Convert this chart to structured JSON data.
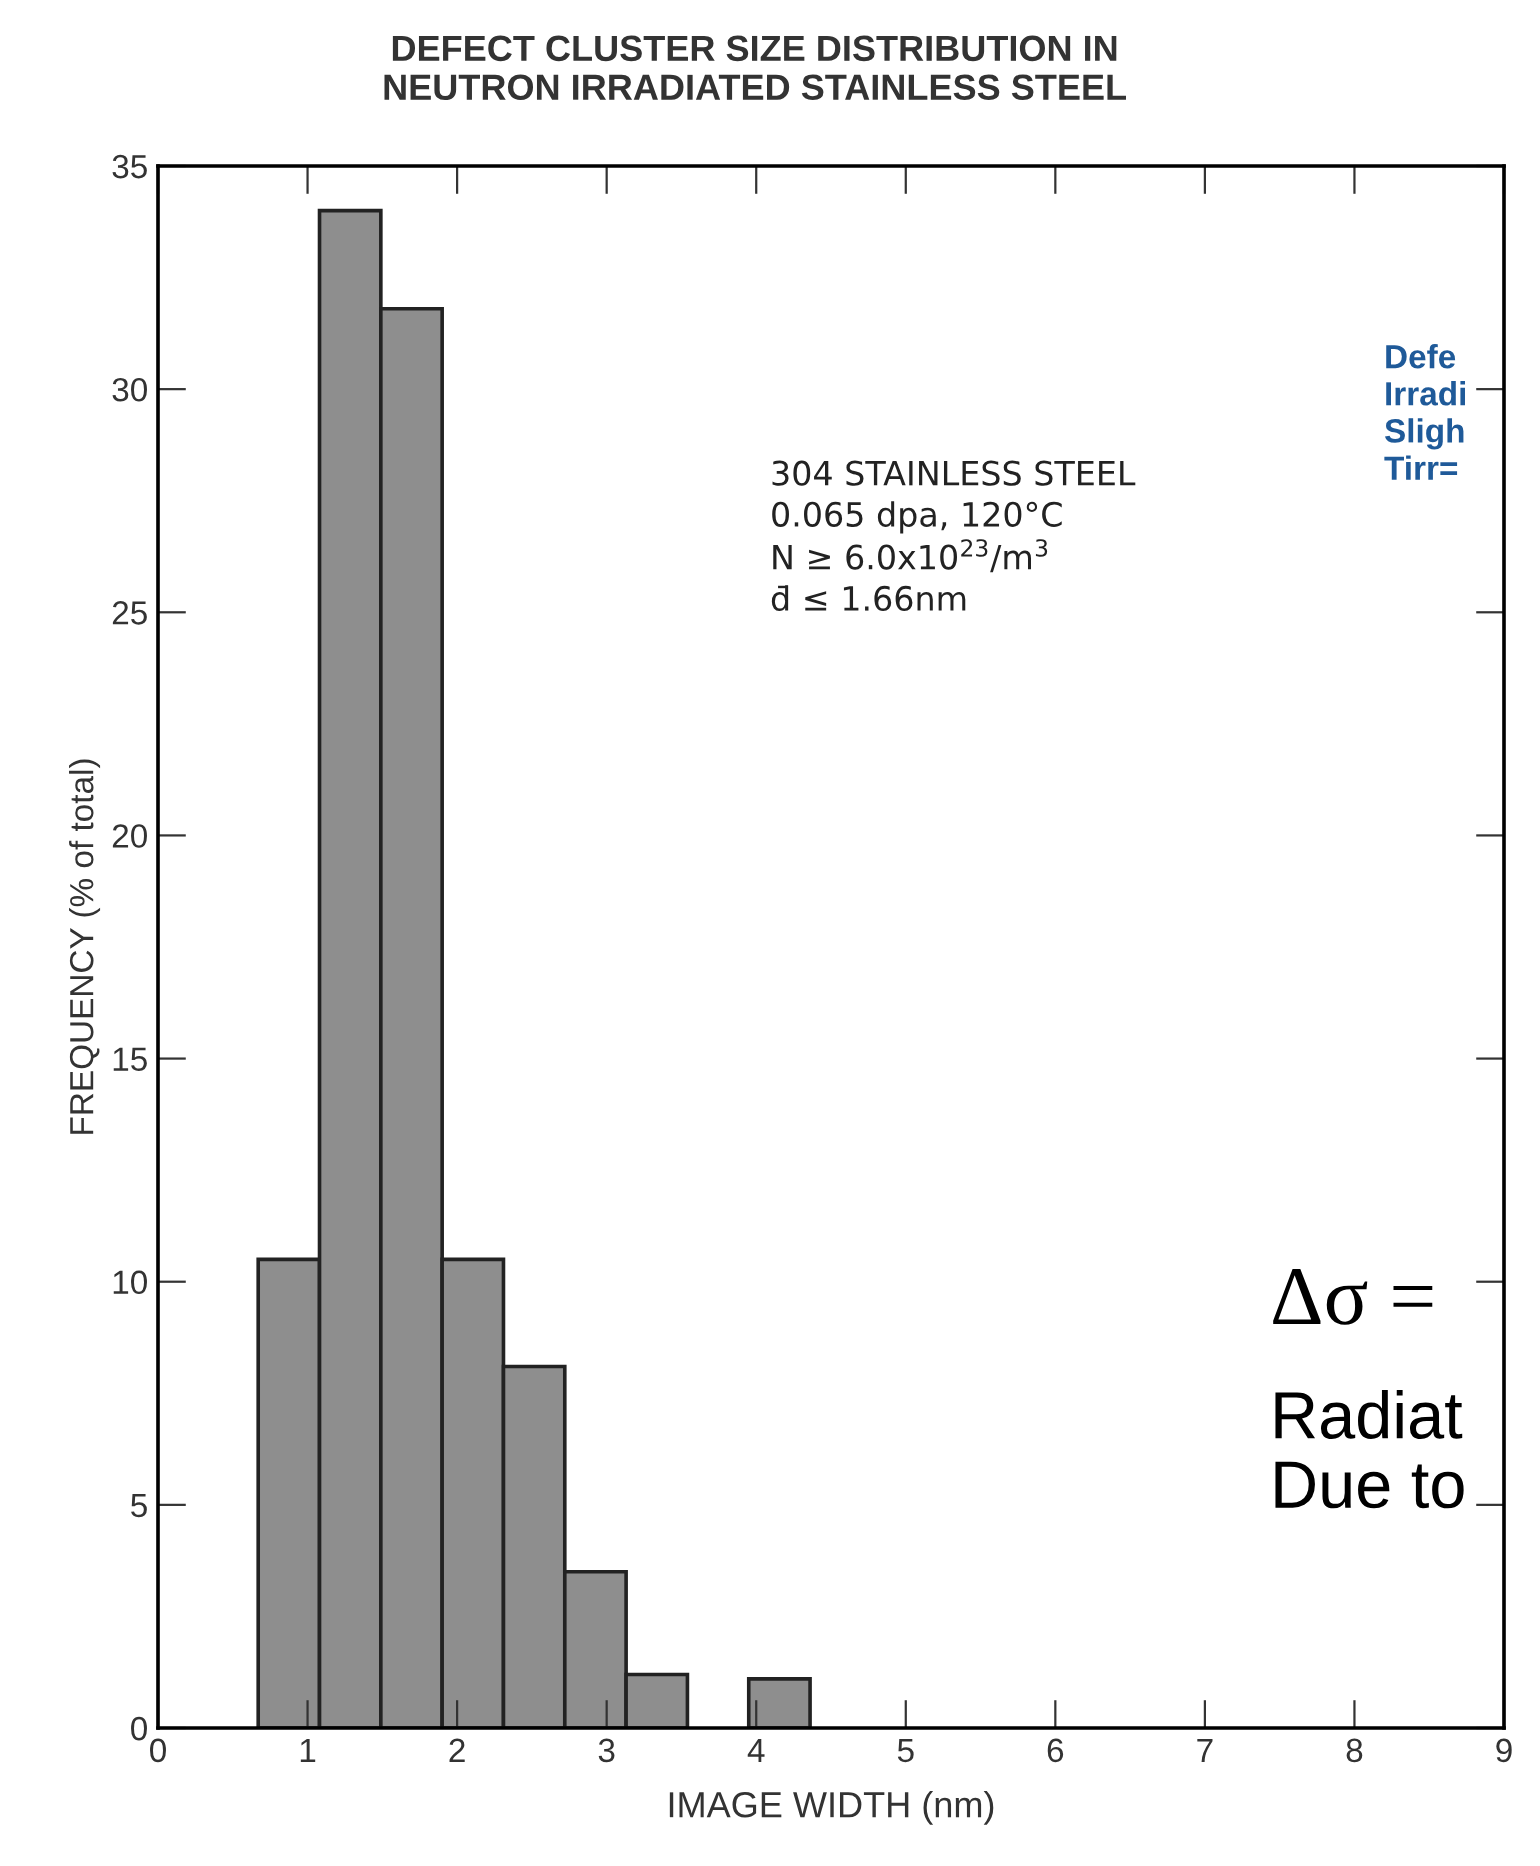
{
  "chart_data": {
    "type": "histogram",
    "title": "DEFECT CLUSTER SIZE DISTRIBUTION IN\nNEUTRON IRRADIATED STAINLESS STEEL",
    "xlabel": "IMAGE WIDTH (nm)",
    "ylabel": "FREQUENCY (% of total)",
    "bins": [
      0.67,
      1.08,
      1.49,
      1.9,
      2.31,
      2.72,
      3.13,
      3.54,
      3.95,
      4.36
    ],
    "values": [
      10.5,
      34.0,
      31.8,
      10.5,
      8.1,
      3.5,
      1.2,
      0,
      1.1
    ],
    "color": "#8e8e8e",
    "xlim": [
      0,
      9
    ],
    "xticks": [
      0,
      1,
      2,
      3,
      4,
      5,
      6,
      7,
      8,
      9
    ],
    "ylim": [
      0,
      35
    ],
    "yticks": [
      0,
      5,
      10,
      15,
      20,
      25,
      30,
      35
    ],
    "grid": false,
    "legend": false,
    "annotations": [
      "304 STAINLESS STEEL\n0.065 dpa, 120°C\nN ≥ 6.0x10$^{23}$/m$^{3}$\nd̄ ≤ 1.66nm",
      "Defe\nIrradi\nSligh\nTirr=",
      "Δσ =",
      "Radiat\nDue to"
    ]
  }
}
